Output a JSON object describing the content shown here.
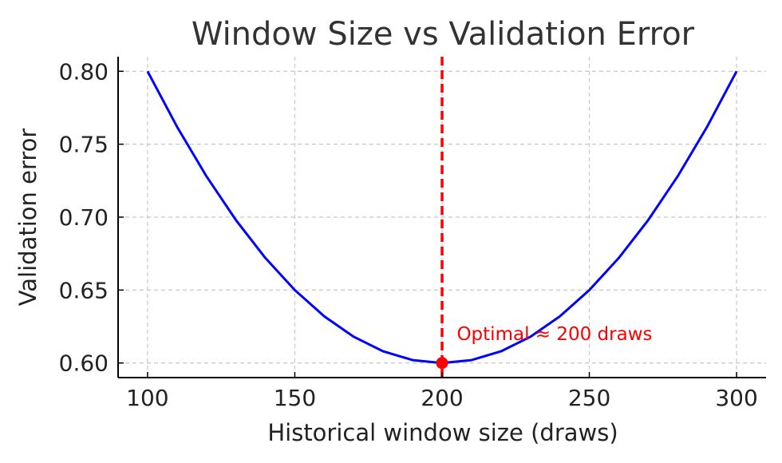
{
  "chart_data": {
    "type": "line",
    "title": "Window Size vs Validation Error",
    "xlabel": "Historical window size (draws)",
    "ylabel": "Validation error",
    "xlim": [
      90,
      310
    ],
    "ylim": [
      0.59,
      0.81
    ],
    "x_ticks": [
      100,
      150,
      200,
      250,
      300
    ],
    "x_tick_labels": [
      "100",
      "150",
      "200",
      "250",
      "300"
    ],
    "y_ticks": [
      0.6,
      0.65,
      0.7,
      0.75,
      0.8
    ],
    "y_tick_labels": [
      "0.60",
      "0.65",
      "0.70",
      "0.75",
      "0.80"
    ],
    "grid": true,
    "series": [
      {
        "color": "#0000ff",
        "x": [
          100,
          110,
          120,
          130,
          140,
          150,
          160,
          170,
          180,
          190,
          200,
          210,
          220,
          230,
          240,
          250,
          260,
          270,
          280,
          290,
          300
        ],
        "y": [
          0.8,
          0.762,
          0.728,
          0.698,
          0.672,
          0.65,
          0.632,
          0.618,
          0.608,
          0.602,
          0.6,
          0.602,
          0.608,
          0.618,
          0.632,
          0.65,
          0.672,
          0.698,
          0.728,
          0.762,
          0.8
        ]
      }
    ],
    "vline": {
      "x": 200,
      "color": "#ff0000",
      "style": "dashed"
    },
    "marker": {
      "x": 200,
      "y": 0.6,
      "color": "#ff0000"
    },
    "annotation": {
      "text": "Optimal ≈ 200 draws",
      "x": 205,
      "y": 0.62,
      "color": "#ff0000"
    }
  }
}
